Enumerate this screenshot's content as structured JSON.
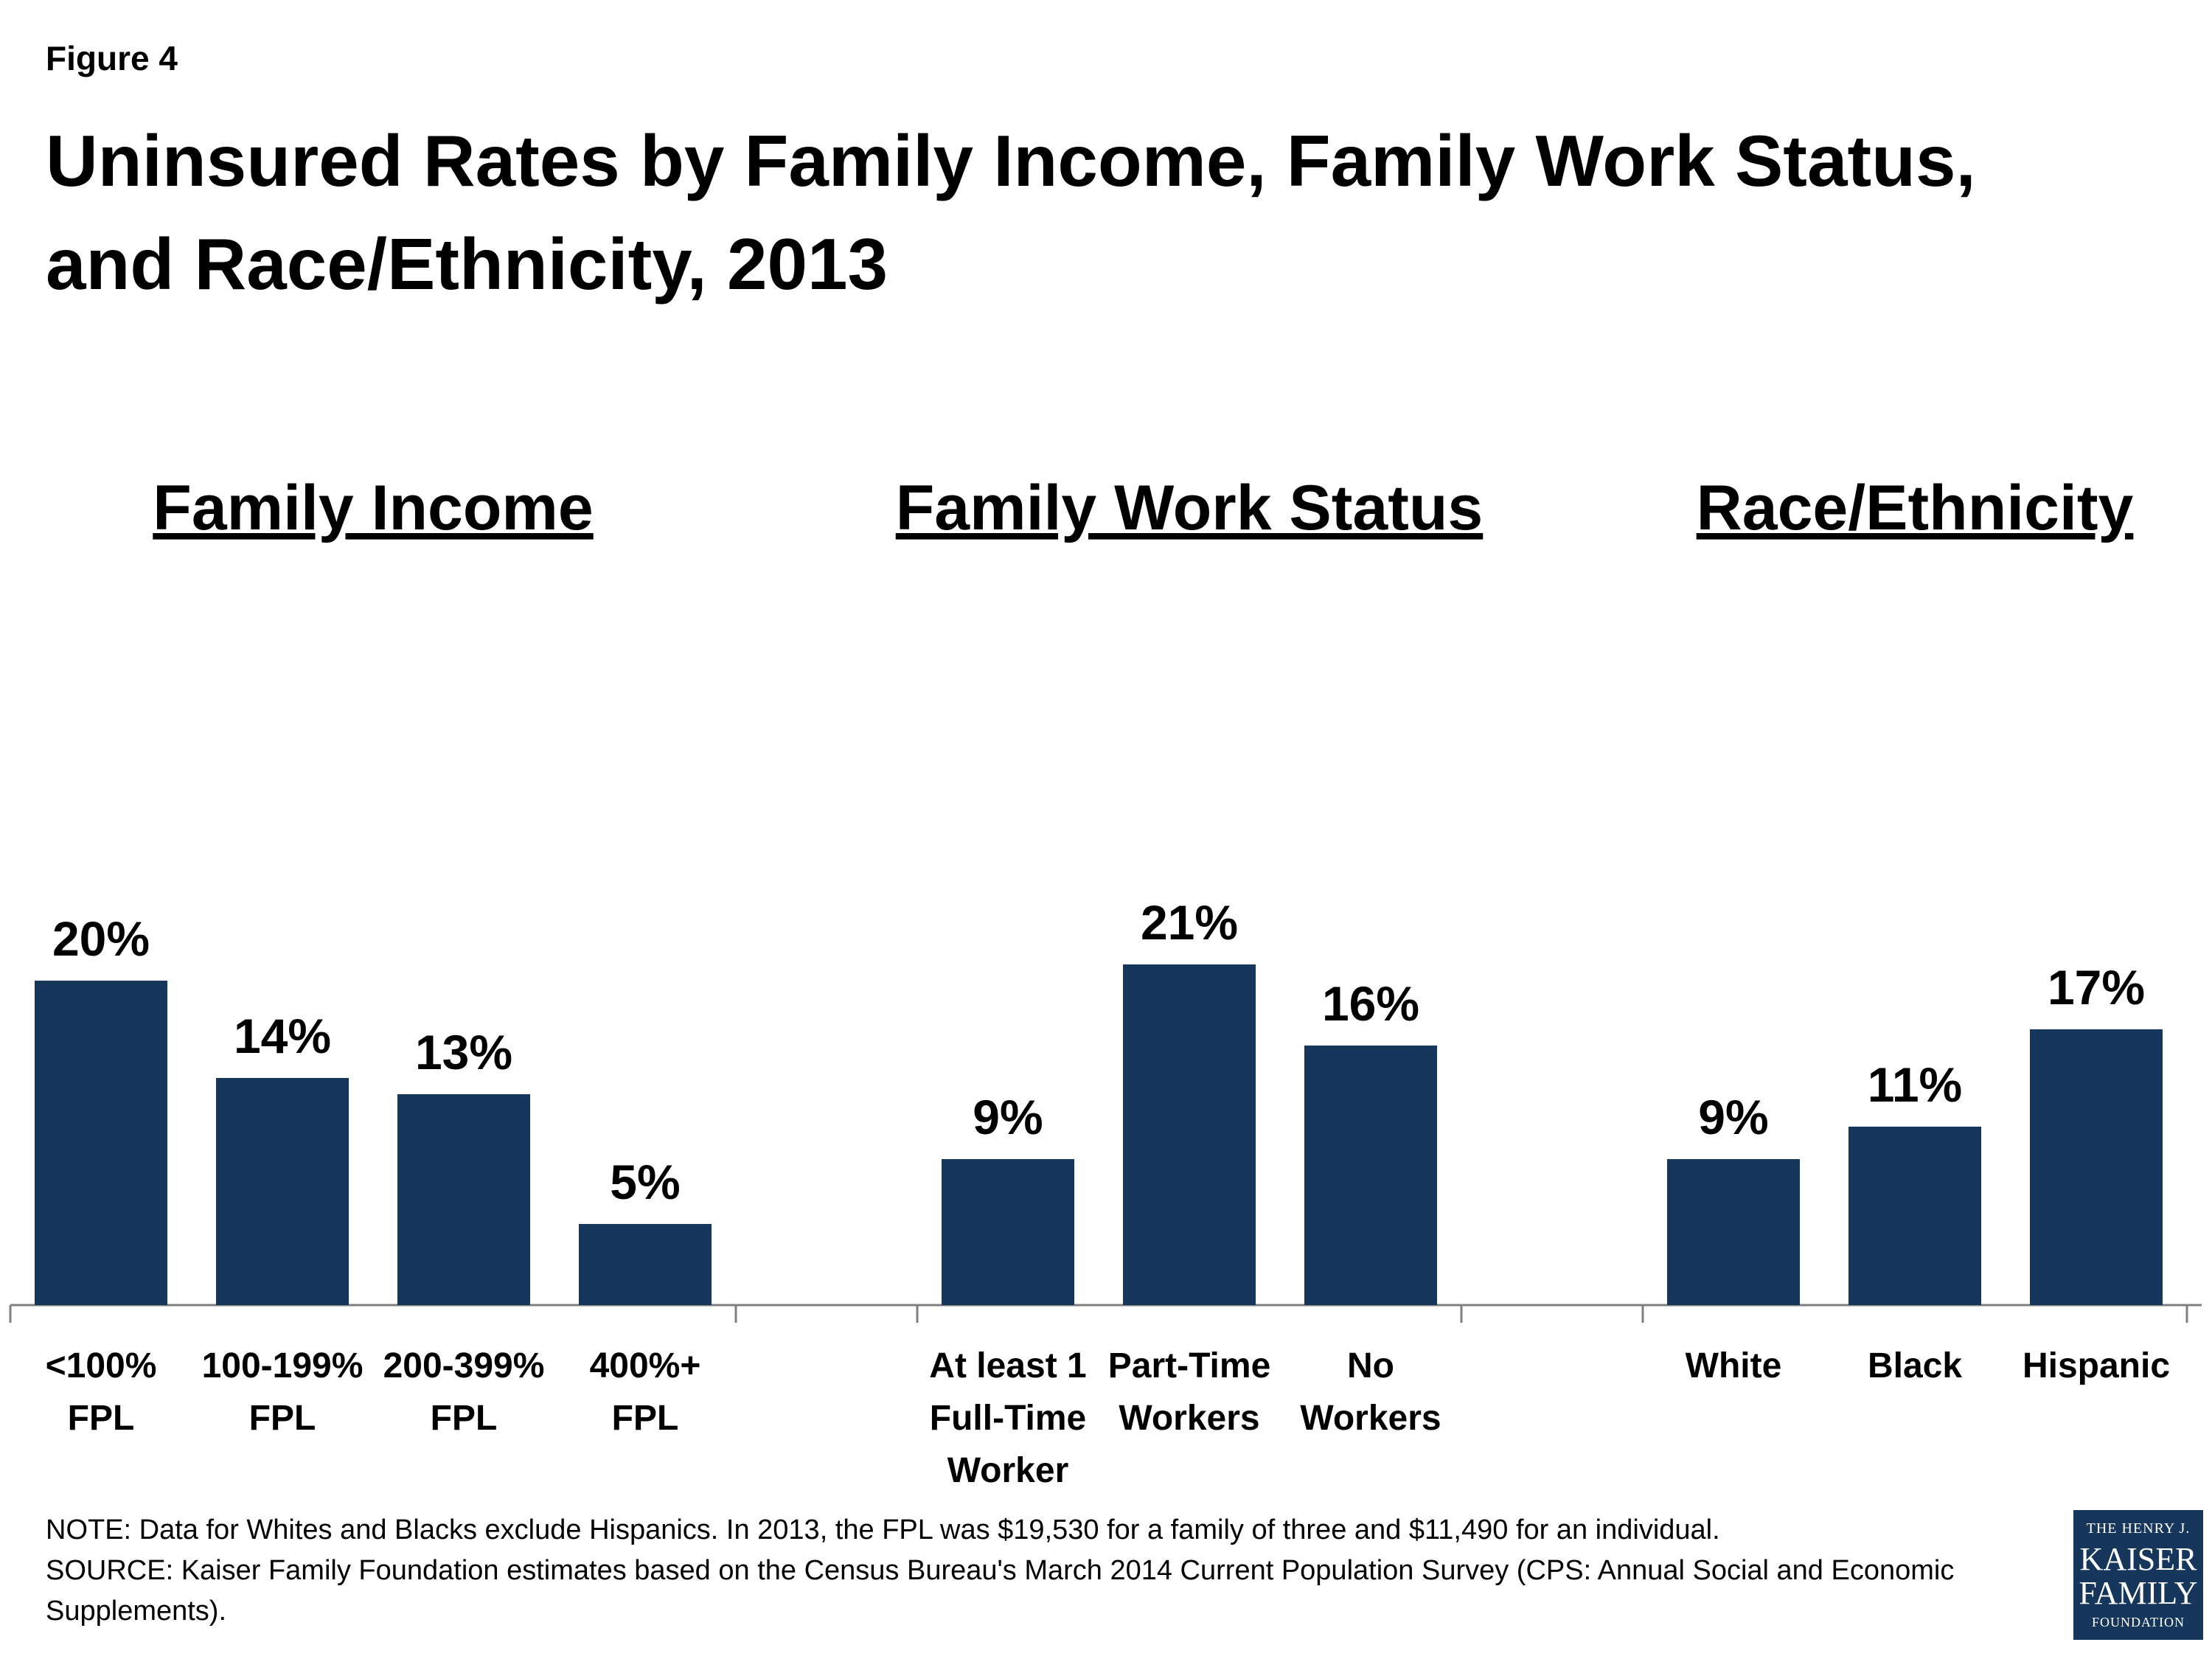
{
  "figure_label": "Figure 4",
  "colors": {
    "bar": "#16365c",
    "axis": "#7f7f7f",
    "logo_bg": "#16365c"
  },
  "chart_data": {
    "type": "bar",
    "title": "Uninsured Rates by Family Income, Family Work Status, and Race/Ethnicity, 2013",
    "xlabel": "",
    "ylabel": "",
    "grid": false,
    "legend": "none",
    "ylim": [
      0,
      25
    ],
    "value_suffix": "%",
    "groups": [
      {
        "name": "Family Income",
        "categories": [
          [
            "<100%",
            "FPL"
          ],
          [
            "100-199%",
            "FPL"
          ],
          [
            "200-399%",
            "FPL"
          ],
          [
            "400%+",
            "FPL"
          ]
        ],
        "values": [
          20,
          14,
          13,
          5
        ]
      },
      {
        "name": "Family Work Status",
        "categories": [
          [
            "At least 1",
            "Full-Time",
            "Worker"
          ],
          [
            "Part-Time",
            "Workers"
          ],
          [
            "No",
            "Workers"
          ]
        ],
        "values": [
          9,
          21,
          16
        ]
      },
      {
        "name": "Race/Ethnicity",
        "categories": [
          [
            "White"
          ],
          [
            "Black"
          ],
          [
            "Hispanic"
          ]
        ],
        "values": [
          9,
          11,
          17
        ]
      }
    ]
  },
  "notes": {
    "note": "NOTE: Data for Whites and Blacks exclude Hispanics. In 2013, the FPL was $19,530 for a family of three and $11,490 for an individual.",
    "source": "SOURCE: Kaiser Family Foundation estimates based on the Census Bureau's March 2014 Current Population Survey (CPS: Annual Social and Economic Supplements)."
  },
  "logo": {
    "line1": "THE HENRY J.",
    "line2": "KAISER",
    "line3": "FAMILY",
    "line4": "FOUNDATION"
  }
}
